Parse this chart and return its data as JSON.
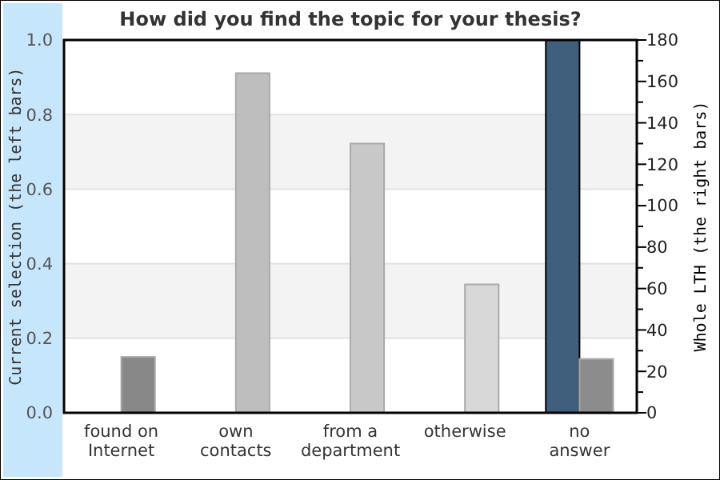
{
  "chart_data": {
    "type": "bar",
    "title": "How did you find the topic for your thesis?",
    "ylabel": "Current selection (the left bars)",
    "y2label": "Whole LTH (the right bars)",
    "categories": [
      "found on\nInternet",
      "own\ncontacts",
      "from a\ndepartment",
      "otherwise",
      "no\nanswer"
    ],
    "series": [
      {
        "colors": [
          "#3f5f7c",
          "#3f5f7c",
          "#3f5f7c",
          "#3f5f7c",
          "#3f5f7c"
        ],
        "values": [
          0,
          0,
          0,
          0,
          1
        ]
      },
      {
        "axis": "y2",
        "colors": [
          "#888888",
          "#bebebe",
          "#c8c8c8",
          "#d8d8d8",
          "#8c8c8c"
        ],
        "values": [
          27,
          164,
          130,
          62,
          26
        ]
      }
    ],
    "ylim": [
      0,
      1
    ],
    "yticks": [
      {
        "value": 0,
        "label": "0.0"
      },
      {
        "value": 0.2,
        "label": "0.2"
      },
      {
        "value": 0.4,
        "label": "0.4"
      },
      {
        "value": 0.6,
        "label": "0.6"
      },
      {
        "value": 0.8,
        "label": "0.8"
      },
      {
        "value": 1,
        "label": "1.0"
      }
    ],
    "bands": [
      {
        "axis": "y",
        "from": 0.2,
        "to": 0.4,
        "color": "#f3f3f3"
      },
      {
        "axis": "y",
        "from": 0.6,
        "to": 0.8,
        "color": "#f3f3f3"
      }
    ],
    "y2lim": [
      0,
      180
    ],
    "y2ticks": [
      0,
      {
        "value": 10,
        "label": null
      },
      20,
      {
        "value": 30,
        "label": null
      },
      40,
      {
        "value": 50,
        "label": null
      },
      60,
      {
        "value": 70,
        "label": null
      },
      80,
      {
        "value": 90,
        "label": null
      },
      100,
      {
        "value": 110,
        "label": null
      },
      120,
      {
        "value": 130,
        "label": null
      },
      140,
      {
        "value": 150,
        "label": null
      },
      160,
      {
        "value": 170,
        "label": null
      },
      180
    ],
    "grid": "y"
  }
}
